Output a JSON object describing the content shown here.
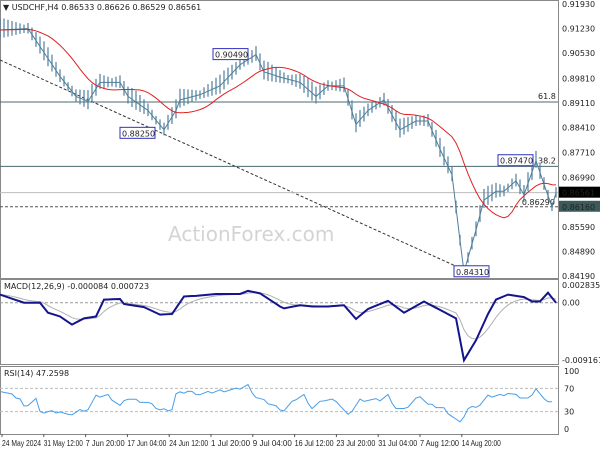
{
  "header": {
    "symbol_label": "USDCHF,H4",
    "ohlc": "0.86533 0.86626 0.86529 0.86561"
  },
  "watermark": "ActionForex.com",
  "colors": {
    "price": "#4f7f9c",
    "ma": "#e02020",
    "macd": "#14148c",
    "signal": "#b0b0b0",
    "rsi": "#4a9ee8",
    "label_box": "#3030c0",
    "current": "#000000"
  },
  "chart_data": [
    {
      "type": "line",
      "panel": "price",
      "title": "USDCHF,H4",
      "yticks": [
        "0.91930",
        "0.91230",
        "0.90530",
        "0.89810",
        "0.89110",
        "0.88410",
        "0.87710",
        "0.86990",
        "0.86290",
        "0.85590",
        "0.84890",
        "0.84190"
      ],
      "ylim": [
        0.8419,
        0.9193
      ],
      "bars": [
        [
          0,
          0.9119
        ],
        [
          7,
          0.9123
        ],
        [
          10,
          0.9072
        ],
        [
          15,
          0.8987
        ],
        [
          19,
          0.893
        ],
        [
          22,
          0.8916
        ],
        [
          25,
          0.897
        ],
        [
          30,
          0.897
        ],
        [
          32,
          0.893
        ],
        [
          37,
          0.889
        ],
        [
          41,
          0.8835
        ],
        [
          44,
          0.889
        ],
        [
          45,
          0.892
        ],
        [
          50,
          0.8935
        ],
        [
          55,
          0.896
        ],
        [
          60,
          0.902
        ],
        [
          64,
          0.9049
        ],
        [
          66,
          0.9
        ],
        [
          70,
          0.8985
        ],
        [
          75,
          0.897
        ],
        [
          79,
          0.893
        ],
        [
          82,
          0.896
        ],
        [
          86,
          0.896
        ],
        [
          89,
          0.885
        ],
        [
          92,
          0.889
        ],
        [
          96,
          0.892
        ],
        [
          100,
          0.8835
        ],
        [
          104,
          0.886
        ],
        [
          107,
          0.886
        ],
        [
          110,
          0.878
        ],
        [
          113,
          0.8707
        ],
        [
          115,
          0.852
        ],
        [
          116,
          0.8431
        ],
        [
          119,
          0.855
        ],
        [
          121,
          0.8635
        ],
        [
          124,
          0.866
        ],
        [
          126,
          0.866
        ],
        [
          129,
          0.869
        ],
        [
          131,
          0.865
        ],
        [
          134,
          0.8747
        ],
        [
          136,
          0.868
        ],
        [
          138,
          0.8616
        ],
        [
          139,
          0.8656
        ]
      ],
      "xticks": [
        "24 May 2024",
        "31 May 12:00",
        "7 Jun 20:00",
        "17 Jun 04:00",
        "24 Jun 12:00",
        "1 Jul 20:00",
        "9 Jul 04:00",
        "16 Jul 12:00",
        "23 Jul 20:00",
        "31 Jul 04:00",
        "7 Aug 12:00",
        "14 Aug 20:00"
      ],
      "annotations": {
        "labels": [
          {
            "text": "0.90490",
            "price": 0.9049
          },
          {
            "text": "0.88250",
            "price": 0.8825
          },
          {
            "text": "0.84310",
            "price": 0.8431
          },
          {
            "text": "0.87470",
            "price": 0.8747
          }
        ],
        "fib": [
          {
            "text": "61.8",
            "price": 0.8914
          },
          {
            "text": "38.2",
            "price": 0.8731
          }
        ],
        "current_price": "0.86561",
        "support_line": "0.86160",
        "support_tag_hidden": "0.86290"
      }
    },
    {
      "type": "line",
      "panel": "macd",
      "title": "MACD(12,26,9) -0.000084 0.000723",
      "yticks": [
        "0.002835",
        "0.00",
        "-0.009161"
      ],
      "ylim": [
        -0.009161,
        0.002835
      ],
      "values": [
        [
          0,
          0.0013
        ],
        [
          6,
          0.0
        ],
        [
          10,
          0.0
        ],
        [
          12,
          -0.0016
        ],
        [
          15,
          -0.0022
        ],
        [
          18,
          -0.0035
        ],
        [
          21,
          -0.0025
        ],
        [
          24,
          -0.0022
        ],
        [
          26,
          0.0005
        ],
        [
          30,
          0.0006
        ],
        [
          31,
          -0.0002
        ],
        [
          36,
          -0.0007
        ],
        [
          40,
          -0.0019
        ],
        [
          43,
          -0.0018
        ],
        [
          46,
          0.001
        ],
        [
          49,
          0.0011
        ],
        [
          54,
          0.0014
        ],
        [
          60,
          0.0014
        ],
        [
          62,
          0.0019
        ],
        [
          65,
          0.0015
        ],
        [
          70,
          -0.0006
        ],
        [
          71,
          -0.0009
        ],
        [
          75,
          -0.0004
        ],
        [
          78,
          -0.0006
        ],
        [
          82,
          -0.0006
        ],
        [
          86,
          -0.0004
        ],
        [
          89,
          -0.0026
        ],
        [
          92,
          -0.001
        ],
        [
          97,
          0.0003
        ],
        [
          101,
          -0.0016
        ],
        [
          106,
          0.0002
        ],
        [
          114,
          -0.0025
        ],
        [
          116,
          -0.0092
        ],
        [
          119,
          -0.006
        ],
        [
          122,
          -0.0018
        ],
        [
          124,
          0.0005
        ],
        [
          127,
          0.0013
        ],
        [
          131,
          0.0009
        ],
        [
          133,
          0.0002
        ],
        [
          135,
          0.0002
        ],
        [
          137,
          0.0016
        ],
        [
          139,
          0.0
        ]
      ]
    },
    {
      "type": "line",
      "panel": "rsi",
      "title": "RSI(14) 47.2598",
      "yticks": [
        "100",
        "70",
        "30",
        "0"
      ],
      "ylim": [
        0,
        100
      ],
      "values": [
        [
          0,
          67
        ],
        [
          5,
          52
        ],
        [
          6,
          38
        ],
        [
          9,
          52
        ],
        [
          10,
          28
        ],
        [
          12,
          30
        ],
        [
          15,
          30
        ],
        [
          17,
          23
        ],
        [
          20,
          32
        ],
        [
          22,
          34
        ],
        [
          24,
          56
        ],
        [
          27,
          58
        ],
        [
          30,
          40
        ],
        [
          32,
          53
        ],
        [
          37,
          45
        ],
        [
          40,
          33
        ],
        [
          43,
          34
        ],
        [
          44,
          60
        ],
        [
          47,
          65
        ],
        [
          50,
          60
        ],
        [
          55,
          66
        ],
        [
          59,
          68
        ],
        [
          62,
          75
        ],
        [
          64,
          55
        ],
        [
          67,
          45
        ],
        [
          71,
          32
        ],
        [
          74,
          52
        ],
        [
          76,
          58
        ],
        [
          78,
          36
        ],
        [
          81,
          50
        ],
        [
          84,
          50
        ],
        [
          87,
          23
        ],
        [
          90,
          50
        ],
        [
          95,
          50
        ],
        [
          97,
          58
        ],
        [
          99,
          36
        ],
        [
          101,
          33
        ],
        [
          105,
          58
        ],
        [
          107,
          42
        ],
        [
          111,
          35
        ],
        [
          115,
          10
        ],
        [
          117,
          35
        ],
        [
          120,
          42
        ],
        [
          122,
          56
        ],
        [
          125,
          58
        ],
        [
          127,
          62
        ],
        [
          130,
          55
        ],
        [
          132,
          52
        ],
        [
          134,
          70
        ],
        [
          136,
          50
        ],
        [
          138,
          47
        ]
      ]
    }
  ]
}
